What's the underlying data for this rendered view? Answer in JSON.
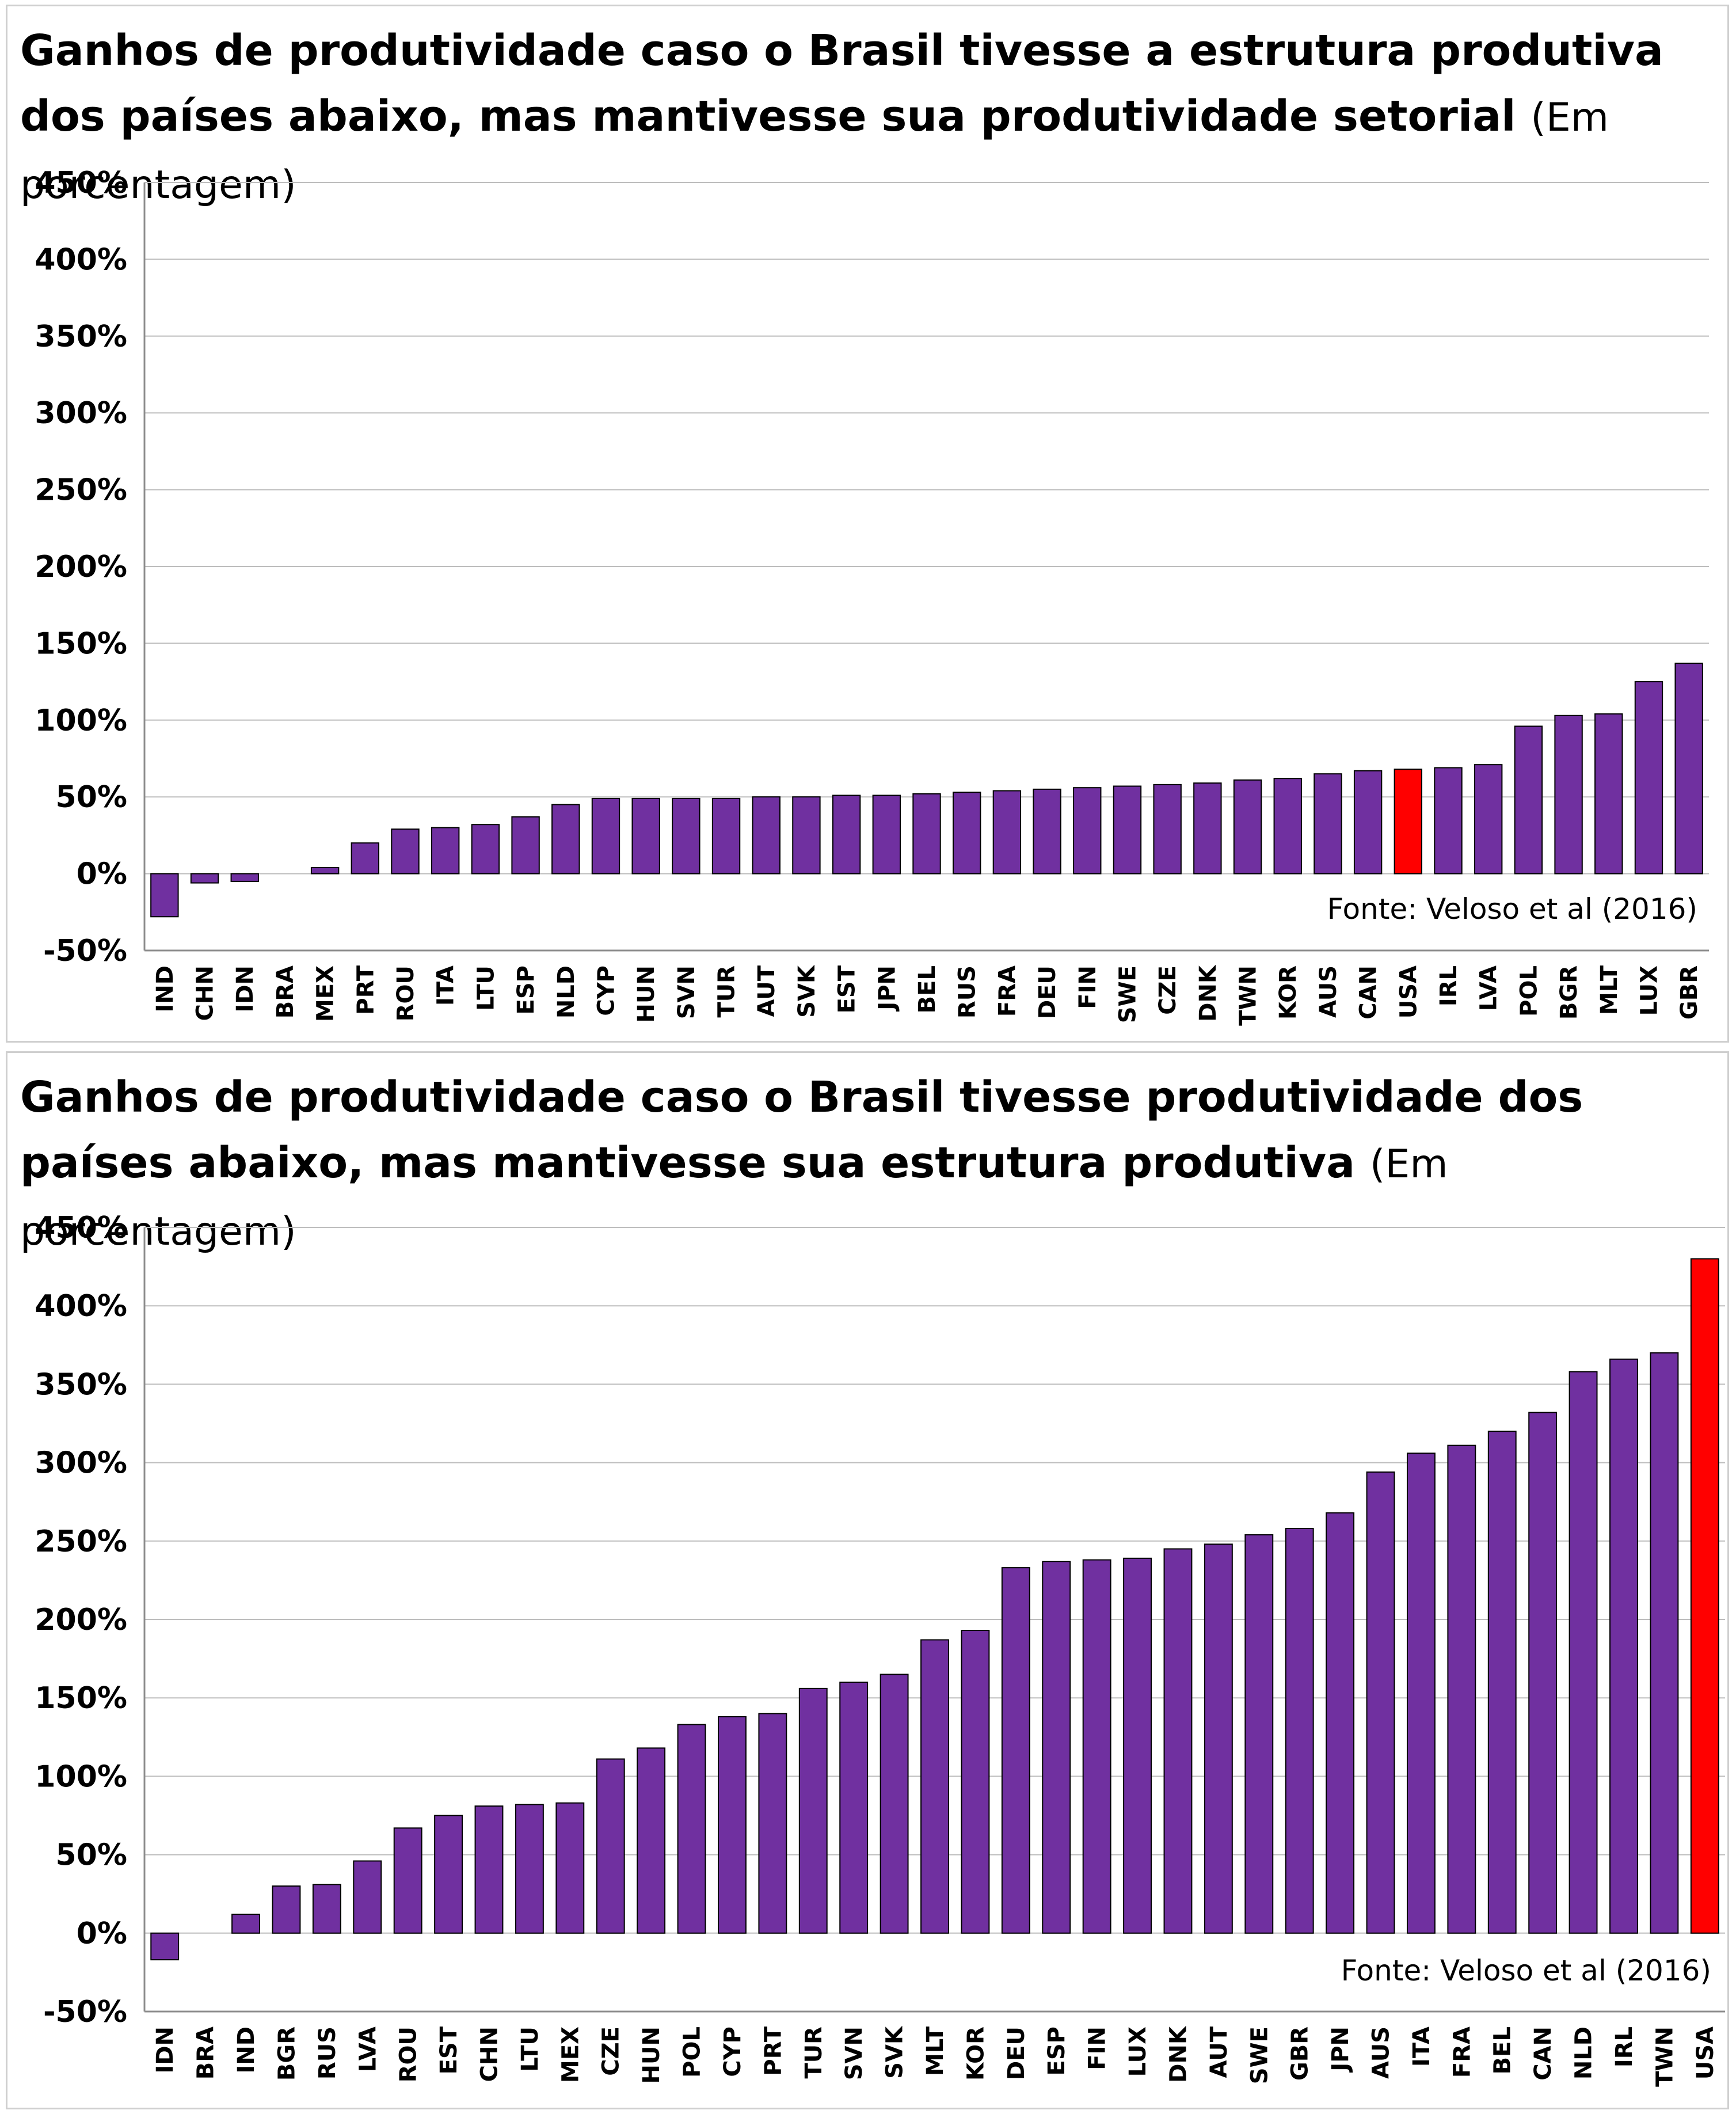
{
  "chart_data": [
    {
      "type": "bar",
      "title": "Ganhos de produtividade caso o Brasil tivesse a estrutura produtiva dos países abaixo, mas mantivesse sua produtividade setorial",
      "subtitle": "(Em porcentagem)",
      "source": "Fonte: Veloso et al (2016)",
      "ylim": [
        -50,
        450
      ],
      "yticks": [
        -50,
        0,
        50,
        100,
        150,
        200,
        250,
        300,
        350,
        400,
        450
      ],
      "ytick_labels": [
        "-50%",
        "0%",
        "50%",
        "100%",
        "150%",
        "200%",
        "250%",
        "300%",
        "350%",
        "400%",
        "450%"
      ],
      "grid": true,
      "bar_color": "#7030A0",
      "highlight_color": "#FF0000",
      "highlight": "USA",
      "categories": [
        "IND",
        "CHN",
        "IDN",
        "BRA",
        "MEX",
        "PRT",
        "ROU",
        "ITA",
        "LTU",
        "ESP",
        "NLD",
        "CYP",
        "HUN",
        "SVN",
        "TUR",
        "AUT",
        "SVK",
        "EST",
        "JPN",
        "BEL",
        "RUS",
        "FRA",
        "DEU",
        "FIN",
        "SWE",
        "CZE",
        "DNK",
        "TWN",
        "KOR",
        "AUS",
        "CAN",
        "USA",
        "IRL",
        "LVA",
        "POL",
        "BGR",
        "MLT",
        "LUX",
        "GBR"
      ],
      "values": [
        -28,
        -6,
        -5,
        0,
        4,
        20,
        29,
        30,
        32,
        37,
        45,
        49,
        49,
        49,
        49,
        50,
        50,
        51,
        51,
        52,
        53,
        54,
        55,
        56,
        57,
        58,
        59,
        61,
        62,
        65,
        67,
        68,
        69,
        71,
        96,
        103,
        104,
        125,
        137
      ]
    },
    {
      "type": "bar",
      "title": "Ganhos de produtividade caso o Brasil tivesse produtividade dos países abaixo, mas mantivesse sua estrutura produtiva",
      "subtitle": "(Em porcentagem)",
      "source": "Fonte: Veloso et al (2016)",
      "ylim": [
        -50,
        450
      ],
      "yticks": [
        -50,
        0,
        50,
        100,
        150,
        200,
        250,
        300,
        350,
        400,
        450
      ],
      "ytick_labels": [
        "-50%",
        "0%",
        "50%",
        "100%",
        "150%",
        "200%",
        "250%",
        "300%",
        "350%",
        "400%",
        "450%"
      ],
      "grid": true,
      "bar_color": "#7030A0",
      "highlight_color": "#FF0000",
      "highlight": "USA",
      "categories": [
        "IDN",
        "BRA",
        "IND",
        "BGR",
        "RUS",
        "LVA",
        "ROU",
        "EST",
        "CHN",
        "LTU",
        "MEX",
        "CZE",
        "HUN",
        "POL",
        "CYP",
        "PRT",
        "TUR",
        "SVN",
        "SVK",
        "MLT",
        "KOR",
        "DEU",
        "ESP",
        "FIN",
        "LUX",
        "DNK",
        "AUT",
        "SWE",
        "GBR",
        "JPN",
        "AUS",
        "ITA",
        "FRA",
        "BEL",
        "CAN",
        "NLD",
        "IRL",
        "TWN",
        "USA"
      ],
      "values": [
        -17,
        0,
        12,
        30,
        31,
        46,
        67,
        75,
        81,
        82,
        83,
        111,
        118,
        133,
        138,
        140,
        156,
        160,
        165,
        187,
        193,
        233,
        237,
        238,
        239,
        245,
        248,
        254,
        258,
        268,
        294,
        306,
        311,
        320,
        332,
        358,
        366,
        370,
        430
      ]
    }
  ]
}
